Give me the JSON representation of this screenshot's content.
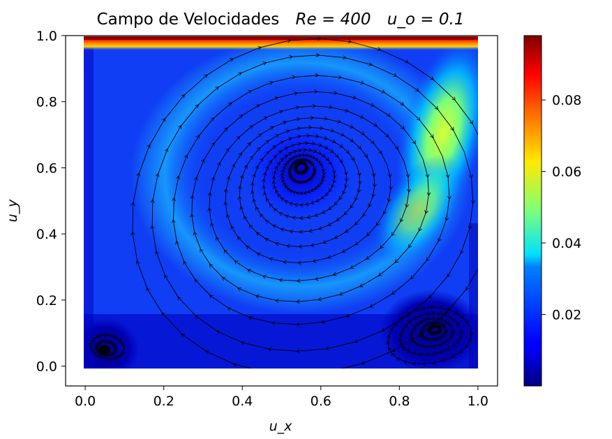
{
  "chart_data": {
    "type": "heatmap",
    "title": "Campo de Velocidades",
    "title_math": [
      "Re = 400",
      "u_o = 0.1"
    ],
    "xlabel": "u_x",
    "ylabel": "u_y",
    "xlim": [
      -0.05,
      1.05
    ],
    "ylim": [
      -0.06,
      1.0
    ],
    "xticks": [
      "0.0",
      "0.2",
      "0.4",
      "0.6",
      "0.8",
      "1.0"
    ],
    "yticks": [
      "0.0",
      "0.2",
      "0.4",
      "0.6",
      "0.8",
      "1.0"
    ],
    "colormap": "jet",
    "colorbar": {
      "range": [
        0.0,
        0.098
      ],
      "ticks": [
        "0.02",
        "0.04",
        "0.06",
        "0.08"
      ]
    },
    "lid_velocity": 0.1,
    "reynolds": 400,
    "vortices": [
      {
        "name": "primary",
        "x": 0.55,
        "y": 0.6
      },
      {
        "name": "bottom-right",
        "x": 0.89,
        "y": 0.11
      },
      {
        "name": "bottom-left",
        "x": 0.05,
        "y": 0.05
      }
    ],
    "peak_region": {
      "x": 0.93,
      "y": 0.65,
      "value": 0.065
    },
    "grid": false
  },
  "colors": {
    "streamline": "#000000",
    "axes": "#000000"
  }
}
